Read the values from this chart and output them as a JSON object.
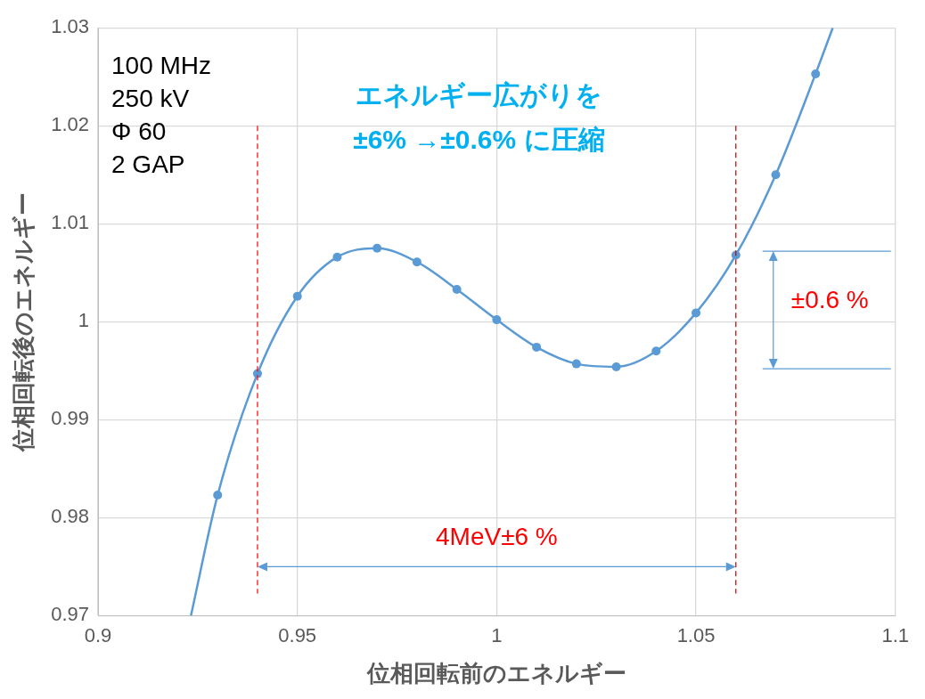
{
  "chart_data": {
    "type": "line",
    "title": "エネルギー広がりを",
    "subtitle": "±6% →±0.6% に圧縮",
    "xlabel": "位相回転前のエネルギー",
    "ylabel": "位相回転後のエネルギー",
    "x": [
      0.9233,
      0.93,
      0.94,
      0.95,
      0.96,
      0.97,
      0.98,
      0.99,
      1.0,
      1.01,
      1.02,
      1.03,
      1.04,
      1.05,
      1.06,
      1.07,
      1.08,
      1.0843
    ],
    "series": [
      {
        "color": "#5b9bd5",
        "values": [
          0.97,
          0.9823,
          0.9947,
          1.0026,
          1.0066,
          1.0075,
          1.0061,
          1.0033,
          1.0002,
          0.9974,
          0.9957,
          0.9954,
          0.997,
          1.0009,
          1.0068,
          1.015,
          1.0253,
          1.03
        ]
      }
    ],
    "xlim": [
      0.9,
      1.1
    ],
    "xticks": [
      0.9,
      0.95,
      1,
      1.05,
      1.1
    ],
    "ylim": [
      0.97,
      1.03
    ],
    "yticks": [
      0.97,
      0.98,
      0.99,
      1,
      1.01,
      1.02,
      1.03
    ],
    "grid": true,
    "marker": "circle",
    "line_style": "solid",
    "ref_lines": [
      {
        "axis": "x",
        "value": 0.94,
        "color": "#ff0000",
        "line_style": "dashed"
      },
      {
        "axis": "x",
        "value": 1.06,
        "color": "#c00000",
        "line_style": "dashed"
      },
      {
        "axis": "y",
        "value": 1.0072,
        "color": "#5b9bd5",
        "line_style": "solid"
      },
      {
        "axis": "y",
        "value": 0.9952,
        "color": "#5b9bd5",
        "line_style": "solid"
      }
    ],
    "annotations": [
      "100 MHz",
      "250 kV",
      "Φ 60",
      "2 GAP",
      "4MeV±6 %",
      "±0.6 %"
    ]
  }
}
